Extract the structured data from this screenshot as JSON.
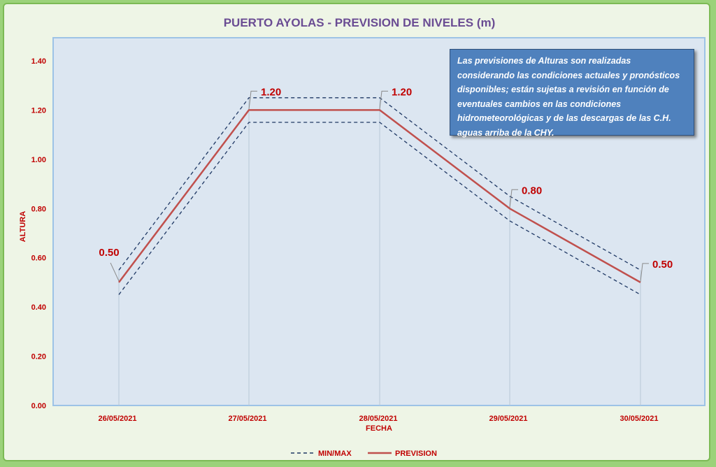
{
  "chart_data": {
    "type": "line",
    "title": "PUERTO AYOLAS - PREVISION DE NIVELES (m)",
    "xlabel": "FECHA",
    "ylabel": "ALTURA",
    "categories": [
      "26/05/2021",
      "27/05/2021",
      "28/05/2021",
      "29/05/2021",
      "30/05/2021"
    ],
    "ylim": [
      0,
      1.4
    ],
    "yticks": [
      "0.00",
      "0.20",
      "0.40",
      "0.60",
      "0.80",
      "1.00",
      "1.20",
      "1.40"
    ],
    "series": [
      {
        "name": "PREVISION",
        "values": [
          0.5,
          1.2,
          1.2,
          0.8,
          0.5
        ],
        "color": "#c0504d",
        "style": "solid"
      },
      {
        "name": "MIN/MAX",
        "role": "max",
        "values": [
          0.55,
          1.25,
          1.25,
          0.85,
          0.55
        ],
        "color": "#1f3864",
        "style": "dashed"
      },
      {
        "name": "MIN/MAX",
        "role": "min",
        "values": [
          0.45,
          1.15,
          1.15,
          0.75,
          0.45
        ],
        "color": "#1f3864",
        "style": "dashed"
      }
    ],
    "data_labels": [
      "0.50",
      "1.20",
      "1.20",
      "0.80",
      "0.50"
    ],
    "legend": {
      "position": "bottom",
      "entries": [
        "MIN/MAX",
        "PREVISION"
      ]
    },
    "grid": false,
    "plot_background": "#dce6f1",
    "plot_border_color": "#9dc3e6"
  },
  "note": {
    "text": "Las previsiones de Alturas son realizadas considerando las condiciones actuales y pronósticos disponibles;  están sujetas a revisión en función de eventuales cambios en las condiciones hidrometeorológicas y de las descargas de las C.H. aguas arriba de la CHY.",
    "background": "#4f81bd"
  },
  "colors": {
    "outer_border": "#9bd27a",
    "title": "#6a4c93",
    "labels": "#c00000"
  }
}
